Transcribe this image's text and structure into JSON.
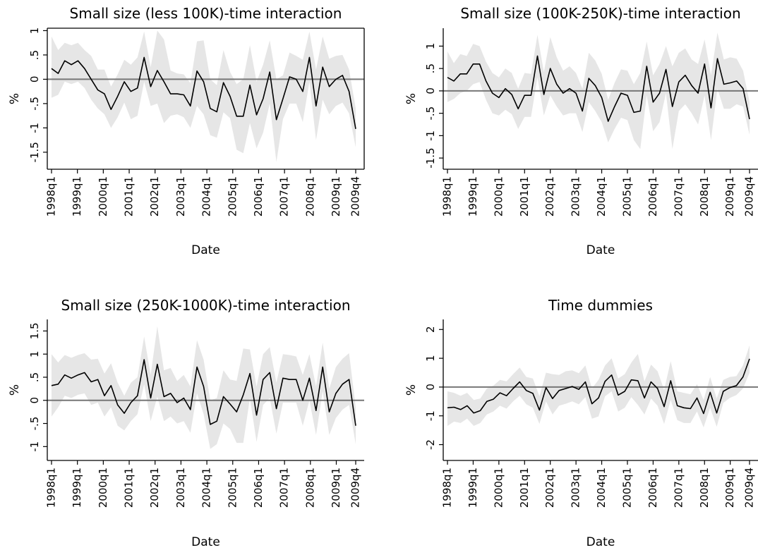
{
  "chart_data": [
    {
      "type": "line",
      "title": "Small size (less 100K)-time interaction",
      "xlabel": "Date",
      "ylabel": "%",
      "ylim": [
        -1.85,
        1.05
      ],
      "yticks": [
        1,
        0.5,
        0,
        -0.5,
        -1,
        -1.5
      ],
      "ytick_labels": [
        "1",
        ".5",
        "0",
        "-.5",
        "-1",
        "-1.5"
      ],
      "x_tick_labels": [
        "1998q1",
        "1999q1",
        "2000q1",
        "2001q1",
        "2002q1",
        "2003q1",
        "2004q1",
        "2005q1",
        "2006q1",
        "2007q1",
        "2008q1",
        "2009q1",
        "2009q4"
      ],
      "reference_line": 0,
      "series": [
        {
          "values": [
            0.22,
            0.12,
            0.38,
            0.3,
            0.38,
            0.22,
            0.0,
            -0.22,
            -0.3,
            -0.62,
            -0.35,
            -0.05,
            -0.25,
            -0.18,
            0.45,
            -0.15,
            0.18,
            -0.05,
            -0.3,
            -0.3,
            -0.32,
            -0.55,
            0.17,
            -0.05,
            -0.6,
            -0.67,
            -0.07,
            -0.35,
            -0.76,
            -0.76,
            -0.12,
            -0.73,
            -0.4,
            0.15,
            -0.83,
            -0.4,
            0.05,
            0.0,
            -0.25,
            0.45,
            -0.55,
            0.25,
            -0.15,
            0.0,
            0.08,
            -0.25,
            -1.02
          ],
          "lower": [
            -0.38,
            -0.32,
            -0.05,
            -0.1,
            -0.05,
            -0.18,
            -0.42,
            -0.6,
            -0.72,
            -1.0,
            -0.78,
            -0.48,
            -0.82,
            -0.75,
            -0.05,
            -0.55,
            -0.5,
            -0.9,
            -0.75,
            -0.72,
            -0.78,
            -1.0,
            -0.55,
            -0.72,
            -1.15,
            -1.2,
            -0.68,
            -0.8,
            -1.45,
            -1.52,
            -0.9,
            -1.42,
            -1.1,
            -0.5,
            -1.7,
            -0.82,
            -0.5,
            -0.5,
            -0.88,
            -0.05,
            -1.25,
            -0.42,
            -0.72,
            -0.55,
            -0.48,
            -0.7,
            -1.4
          ],
          "upper": [
            0.88,
            0.6,
            0.75,
            0.7,
            0.75,
            0.6,
            0.48,
            0.2,
            0.2,
            -0.15,
            0.1,
            0.4,
            0.3,
            0.45,
            0.98,
            0.25,
            1.0,
            0.82,
            0.18,
            0.12,
            0.1,
            -0.08,
            0.78,
            0.8,
            0.0,
            -0.12,
            0.6,
            0.15,
            -0.1,
            0.0,
            0.7,
            -0.05,
            0.3,
            0.8,
            0.0,
            0.08,
            0.55,
            0.48,
            0.4,
            0.98,
            0.2,
            0.88,
            0.42,
            0.48,
            0.5,
            0.2,
            -0.6
          ]
        }
      ]
    },
    {
      "type": "line",
      "title": "Small size (100K-250K)-time interaction",
      "xlabel": "Date",
      "ylabel": "%",
      "ylim": [
        -1.75,
        1.4
      ],
      "yticks": [
        1,
        0.5,
        0,
        -0.5,
        -1,
        -1.5
      ],
      "ytick_labels": [
        "1",
        ".5",
        "0",
        "-.5",
        "-1",
        "-1.5"
      ],
      "x_tick_labels": [
        "1998q1",
        "1999q1",
        "2000q1",
        "2001q1",
        "2002q1",
        "2003q1",
        "2004q1",
        "2005q1",
        "2006q1",
        "2007q1",
        "2008q1",
        "2009q1",
        "2009q4"
      ],
      "reference_line": 0,
      "series": [
        {
          "values": [
            0.3,
            0.22,
            0.38,
            0.38,
            0.6,
            0.6,
            0.22,
            -0.05,
            -0.15,
            0.05,
            -0.08,
            -0.4,
            -0.1,
            -0.1,
            0.78,
            -0.08,
            0.5,
            0.15,
            -0.05,
            0.05,
            -0.05,
            -0.45,
            0.28,
            0.12,
            -0.15,
            -0.68,
            -0.35,
            -0.05,
            -0.1,
            -0.48,
            -0.45,
            0.55,
            -0.25,
            -0.05,
            0.48,
            -0.35,
            0.2,
            0.35,
            0.12,
            -0.05,
            0.6,
            -0.38,
            0.72,
            0.15,
            0.18,
            0.22,
            0.05,
            -0.63
          ],
          "lower": [
            -0.25,
            -0.18,
            -0.05,
            0.0,
            0.15,
            0.2,
            -0.2,
            -0.5,
            -0.55,
            -0.42,
            -0.52,
            -0.85,
            -0.58,
            -0.58,
            0.3,
            -0.55,
            -0.1,
            -0.35,
            -0.55,
            -0.5,
            -0.5,
            -0.92,
            -0.25,
            -0.45,
            -0.7,
            -1.15,
            -0.85,
            -0.6,
            -0.65,
            -1.1,
            -1.3,
            -0.1,
            -0.9,
            -0.7,
            -0.05,
            -1.3,
            -0.45,
            -0.3,
            -0.5,
            -0.75,
            -0.1,
            -1.1,
            0.05,
            -0.4,
            -0.4,
            -0.3,
            -0.35,
            -0.98
          ],
          "upper": [
            0.88,
            0.62,
            0.82,
            0.78,
            1.05,
            1.0,
            0.65,
            0.4,
            0.3,
            0.5,
            0.4,
            0.05,
            0.4,
            0.38,
            1.25,
            0.42,
            1.2,
            0.75,
            0.45,
            0.55,
            0.4,
            0.05,
            0.85,
            0.68,
            0.38,
            -0.2,
            0.18,
            0.48,
            0.45,
            0.15,
            0.4,
            1.1,
            0.35,
            0.6,
            1.0,
            0.55,
            0.85,
            0.95,
            0.7,
            0.6,
            1.15,
            0.35,
            1.3,
            0.7,
            0.75,
            0.72,
            0.45,
            -0.25
          ]
        }
      ]
    },
    {
      "type": "line",
      "title": "Small size (250K-1000K)-time interaction",
      "xlabel": "Date",
      "ylabel": "%",
      "ylim": [
        -1.3,
        1.75
      ],
      "yticks": [
        1.5,
        1,
        0.5,
        0,
        -0.5,
        -1
      ],
      "ytick_labels": [
        "1.5",
        "1",
        ".5",
        "0",
        "-.5",
        "-1"
      ],
      "x_tick_labels": [
        "1998q1",
        "1999q1",
        "2000q1",
        "2001q1",
        "2002q1",
        "2003q1",
        "2004q1",
        "2005q1",
        "2006q1",
        "2007q1",
        "2008q1",
        "2009q1",
        "2009q4"
      ],
      "reference_line": 0,
      "series": [
        {
          "values": [
            0.32,
            0.35,
            0.55,
            0.48,
            0.55,
            0.6,
            0.4,
            0.45,
            0.1,
            0.32,
            -0.1,
            -0.28,
            -0.05,
            0.1,
            0.88,
            0.05,
            0.78,
            0.08,
            0.15,
            -0.05,
            0.05,
            -0.2,
            0.72,
            0.3,
            -0.52,
            -0.45,
            0.08,
            -0.08,
            -0.25,
            0.12,
            0.58,
            -0.32,
            0.45,
            0.6,
            -0.18,
            0.48,
            0.45,
            0.45,
            0.0,
            0.48,
            -0.22,
            0.72,
            -0.25,
            0.15,
            0.35,
            0.45,
            -0.55
          ],
          "lower": [
            -0.35,
            -0.15,
            0.1,
            0.05,
            0.12,
            0.15,
            -0.1,
            -0.05,
            -0.35,
            -0.15,
            -0.55,
            -0.65,
            -0.45,
            -0.3,
            0.35,
            -0.45,
            0.08,
            -0.45,
            -0.35,
            -0.5,
            -0.45,
            -0.7,
            0.15,
            -0.3,
            -1.05,
            -0.95,
            -0.5,
            -0.62,
            -0.92,
            -0.92,
            0.05,
            -0.9,
            -0.1,
            0.05,
            -0.72,
            -0.05,
            -0.05,
            -0.05,
            -0.55,
            0.0,
            -0.75,
            0.2,
            -0.75,
            -0.38,
            -0.2,
            -0.1,
            -0.95
          ],
          "upper": [
            1.0,
            0.82,
            0.98,
            0.92,
            0.98,
            1.02,
            0.88,
            0.9,
            0.58,
            0.8,
            0.38,
            0.1,
            0.38,
            0.5,
            1.38,
            0.55,
            1.6,
            0.65,
            0.7,
            0.42,
            0.55,
            0.3,
            1.3,
            0.88,
            0.0,
            0.05,
            0.65,
            0.45,
            0.42,
            1.12,
            1.1,
            0.3,
            1.0,
            1.15,
            0.38,
            1.0,
            0.98,
            0.95,
            0.55,
            1.0,
            0.3,
            1.25,
            0.25,
            0.72,
            0.9,
            1.02,
            -0.15
          ]
        }
      ]
    },
    {
      "type": "line",
      "title": "Time dummies",
      "xlabel": "Date",
      "ylabel": "%",
      "ylim": [
        -2.55,
        2.35
      ],
      "yticks": [
        2,
        1,
        0,
        -1,
        -2
      ],
      "ytick_labels": [
        "2",
        "1",
        "0",
        "-1",
        "-2"
      ],
      "x_tick_labels": [
        "1998q1",
        "1999q1",
        "2000q1",
        "2001q1",
        "2002q1",
        "2003q1",
        "2004q1",
        "2005q1",
        "2006q1",
        "2007q1",
        "2008q1",
        "2009q1",
        "2009q4"
      ],
      "reference_line": 0,
      "series": [
        {
          "values": [
            -0.72,
            -0.7,
            -0.78,
            -0.65,
            -0.9,
            -0.82,
            -0.5,
            -0.42,
            -0.2,
            -0.3,
            -0.05,
            0.18,
            -0.12,
            -0.22,
            -0.8,
            -0.02,
            -0.4,
            -0.12,
            -0.05,
            0.02,
            -0.08,
            0.18,
            -0.58,
            -0.38,
            0.2,
            0.42,
            -0.28,
            -0.15,
            0.25,
            0.22,
            -0.38,
            0.18,
            -0.05,
            -0.68,
            0.22,
            -0.65,
            -0.72,
            -0.75,
            -0.38,
            -0.92,
            -0.18,
            -0.9,
            -0.15,
            -0.02,
            0.05,
            0.35,
            0.98
          ],
          "lower": [
            -1.35,
            -1.2,
            -1.25,
            -1.1,
            -1.35,
            -1.25,
            -0.95,
            -0.85,
            -0.65,
            -0.75,
            -0.5,
            -0.3,
            -0.6,
            -0.72,
            -1.28,
            -0.5,
            -0.95,
            -0.65,
            -0.58,
            -0.5,
            -0.6,
            -0.35,
            -1.1,
            -1.02,
            -0.32,
            -0.15,
            -0.85,
            -0.72,
            -0.35,
            -0.62,
            -0.95,
            -0.4,
            -0.65,
            -1.28,
            -0.45,
            -1.15,
            -1.25,
            -1.25,
            -0.85,
            -1.4,
            -0.72,
            -1.38,
            -0.55,
            -0.38,
            -0.28,
            -0.05,
            0.5
          ],
          "upper": [
            -0.15,
            -0.2,
            -0.3,
            -0.2,
            -0.45,
            -0.4,
            -0.05,
            0.05,
            0.25,
            0.2,
            0.45,
            0.68,
            0.35,
            0.3,
            -0.32,
            0.5,
            0.45,
            0.42,
            0.55,
            0.58,
            0.48,
            0.75,
            -0.05,
            0.25,
            0.75,
            1.0,
            0.3,
            0.45,
            0.85,
            1.15,
            0.2,
            0.78,
            0.55,
            -0.1,
            0.9,
            -0.15,
            -0.2,
            -0.25,
            0.1,
            -0.45,
            0.35,
            -0.4,
            0.25,
            0.35,
            0.38,
            0.75,
            1.45
          ]
        }
      ]
    }
  ]
}
